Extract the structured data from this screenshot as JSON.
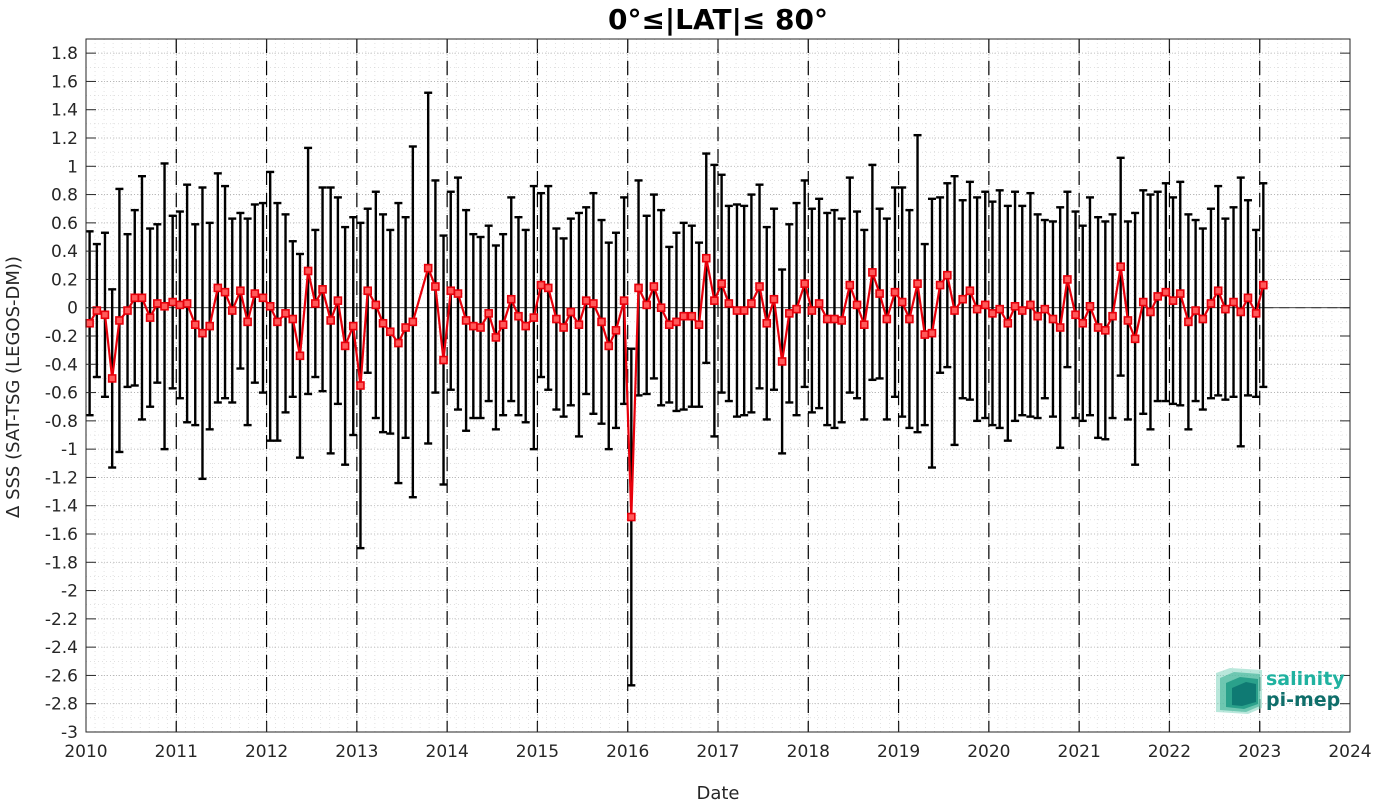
{
  "chart_data": {
    "type": "line",
    "title": "0°≤|LAT|≤ 80°",
    "xlabel": "Date",
    "ylabel": "Δ SSS (SAT-TSG (LEGOS-DM))",
    "xlim": [
      2010,
      2024
    ],
    "ylim": [
      -3,
      1.9
    ],
    "x_ticks": [
      "2010",
      "2011",
      "2012",
      "2013",
      "2014",
      "2015",
      "2016",
      "2017",
      "2018",
      "2019",
      "2020",
      "2021",
      "2022",
      "2023",
      "2024"
    ],
    "y_ticks": [
      "-3",
      "-2.8",
      "-2.6",
      "-2.4",
      "-2.2",
      "-2",
      "-1.8",
      "-1.6",
      "-1.4",
      "-1.2",
      "-1",
      "-0.8",
      "-0.6",
      "-0.4",
      "-0.2",
      "0",
      "0.2",
      "0.4",
      "0.6",
      "0.8",
      "1",
      "1.2",
      "1.4",
      "1.6",
      "1.8"
    ],
    "grid": true,
    "year_dividers": [
      2011,
      2012,
      2013,
      2014,
      2015,
      2016,
      2017,
      2018,
      2019,
      2020,
      2021,
      2022,
      2023
    ],
    "series": [
      {
        "color": "#e8000b",
        "errorbar_color": "#000000",
        "points": [
          [
            2010.04,
            -0.11,
            0.65
          ],
          [
            2010.12,
            -0.02,
            0.47
          ],
          [
            2010.21,
            -0.05,
            0.58
          ],
          [
            2010.29,
            -0.5,
            0.63
          ],
          [
            2010.37,
            -0.09,
            0.93
          ],
          [
            2010.46,
            -0.02,
            0.54
          ],
          [
            2010.54,
            0.07,
            0.62
          ],
          [
            2010.62,
            0.07,
            0.86
          ],
          [
            2010.71,
            -0.07,
            0.63
          ],
          [
            2010.79,
            0.03,
            0.56
          ],
          [
            2010.87,
            0.01,
            1.01
          ],
          [
            2010.96,
            0.04,
            0.61
          ],
          [
            2011.04,
            0.02,
            0.66
          ],
          [
            2011.12,
            0.03,
            0.84
          ],
          [
            2011.21,
            -0.12,
            0.71
          ],
          [
            2011.29,
            -0.18,
            1.03
          ],
          [
            2011.37,
            -0.13,
            0.73
          ],
          [
            2011.46,
            0.14,
            0.81
          ],
          [
            2011.54,
            0.11,
            0.75
          ],
          [
            2011.62,
            -0.02,
            0.65
          ],
          [
            2011.71,
            0.12,
            0.55
          ],
          [
            2011.79,
            -0.1,
            0.73
          ],
          [
            2011.87,
            0.1,
            0.63
          ],
          [
            2011.96,
            0.07,
            0.67
          ],
          [
            2012.04,
            0.01,
            0.95
          ],
          [
            2012.12,
            -0.1,
            0.84
          ],
          [
            2012.21,
            -0.04,
            0.7
          ],
          [
            2012.29,
            -0.08,
            0.55
          ],
          [
            2012.37,
            -0.34,
            0.72
          ],
          [
            2012.46,
            0.26,
            0.87
          ],
          [
            2012.54,
            0.03,
            0.52
          ],
          [
            2012.62,
            0.13,
            0.72
          ],
          [
            2012.71,
            -0.09,
            0.94
          ],
          [
            2012.79,
            0.05,
            0.73
          ],
          [
            2012.87,
            -0.27,
            0.84
          ],
          [
            2012.96,
            -0.13,
            0.77
          ],
          [
            2013.04,
            -0.55,
            1.15
          ],
          [
            2013.12,
            0.12,
            0.58
          ],
          [
            2013.21,
            0.02,
            0.8
          ],
          [
            2013.29,
            -0.11,
            0.77
          ],
          [
            2013.37,
            -0.17,
            0.72
          ],
          [
            2013.46,
            -0.25,
            0.99
          ],
          [
            2013.54,
            -0.14,
            0.78
          ],
          [
            2013.62,
            -0.1,
            1.24
          ],
          [
            2013.79,
            0.28,
            1.24
          ],
          [
            2013.87,
            0.15,
            0.75
          ],
          [
            2013.96,
            -0.37,
            0.88
          ],
          [
            2014.04,
            0.12,
            0.7
          ],
          [
            2014.12,
            0.1,
            0.82
          ],
          [
            2014.21,
            -0.09,
            0.78
          ],
          [
            2014.29,
            -0.13,
            0.65
          ],
          [
            2014.37,
            -0.14,
            0.64
          ],
          [
            2014.46,
            -0.04,
            0.62
          ],
          [
            2014.54,
            -0.21,
            0.65
          ],
          [
            2014.62,
            -0.12,
            0.64
          ],
          [
            2014.71,
            0.06,
            0.72
          ],
          [
            2014.79,
            -0.06,
            0.7
          ],
          [
            2014.87,
            -0.13,
            0.68
          ],
          [
            2014.96,
            -0.07,
            0.93
          ],
          [
            2015.04,
            0.16,
            0.65
          ],
          [
            2015.12,
            0.14,
            0.72
          ],
          [
            2015.21,
            -0.08,
            0.64
          ],
          [
            2015.29,
            -0.14,
            0.63
          ],
          [
            2015.37,
            -0.03,
            0.66
          ],
          [
            2015.46,
            -0.12,
            0.79
          ],
          [
            2015.54,
            0.05,
            0.66
          ],
          [
            2015.62,
            0.03,
            0.78
          ],
          [
            2015.71,
            -0.1,
            0.72
          ],
          [
            2015.79,
            -0.27,
            0.73
          ],
          [
            2015.87,
            -0.16,
            0.69
          ],
          [
            2015.96,
            0.05,
            0.73
          ],
          [
            2016.04,
            -1.48,
            1.19
          ],
          [
            2016.12,
            0.14,
            0.76
          ],
          [
            2016.21,
            0.02,
            0.63
          ],
          [
            2016.29,
            0.15,
            0.65
          ],
          [
            2016.37,
            0.0,
            0.69
          ],
          [
            2016.46,
            -0.12,
            0.55
          ],
          [
            2016.54,
            -0.1,
            0.63
          ],
          [
            2016.62,
            -0.06,
            0.66
          ],
          [
            2016.71,
            -0.06,
            0.64
          ],
          [
            2016.79,
            -0.12,
            0.58
          ],
          [
            2016.87,
            0.35,
            0.74
          ],
          [
            2016.96,
            0.05,
            0.96
          ],
          [
            2017.04,
            0.17,
            0.77
          ],
          [
            2017.12,
            0.03,
            0.69
          ],
          [
            2017.21,
            -0.02,
            0.75
          ],
          [
            2017.29,
            -0.02,
            0.74
          ],
          [
            2017.37,
            0.03,
            0.77
          ],
          [
            2017.46,
            0.15,
            0.72
          ],
          [
            2017.54,
            -0.11,
            0.68
          ],
          [
            2017.62,
            0.06,
            0.64
          ],
          [
            2017.71,
            -0.38,
            0.65
          ],
          [
            2017.79,
            -0.04,
            0.63
          ],
          [
            2017.87,
            -0.01,
            0.75
          ],
          [
            2017.96,
            0.17,
            0.73
          ],
          [
            2018.04,
            -0.02,
            0.72
          ],
          [
            2018.12,
            0.03,
            0.74
          ],
          [
            2018.21,
            -0.08,
            0.75
          ],
          [
            2018.29,
            -0.08,
            0.77
          ],
          [
            2018.37,
            -0.09,
            0.72
          ],
          [
            2018.46,
            0.16,
            0.76
          ],
          [
            2018.54,
            0.02,
            0.66
          ],
          [
            2018.62,
            -0.12,
            0.67
          ],
          [
            2018.71,
            0.25,
            0.76
          ],
          [
            2018.79,
            0.1,
            0.6
          ],
          [
            2018.87,
            -0.08,
            0.71
          ],
          [
            2018.96,
            0.11,
            0.74
          ],
          [
            2019.04,
            0.04,
            0.81
          ],
          [
            2019.12,
            -0.08,
            0.77
          ],
          [
            2019.21,
            0.17,
            1.05
          ],
          [
            2019.29,
            -0.19,
            0.64
          ],
          [
            2019.37,
            -0.18,
            0.95
          ],
          [
            2019.46,
            0.16,
            0.62
          ],
          [
            2019.54,
            0.23,
            0.65
          ],
          [
            2019.62,
            -0.02,
            0.95
          ],
          [
            2019.71,
            0.06,
            0.7
          ],
          [
            2019.79,
            0.12,
            0.77
          ],
          [
            2019.87,
            -0.01,
            0.79
          ],
          [
            2019.96,
            0.02,
            0.8
          ],
          [
            2020.04,
            -0.04,
            0.79
          ],
          [
            2020.12,
            -0.01,
            0.84
          ],
          [
            2020.21,
            -0.11,
            0.83
          ],
          [
            2020.29,
            0.01,
            0.81
          ],
          [
            2020.37,
            -0.02,
            0.74
          ],
          [
            2020.46,
            0.02,
            0.79
          ],
          [
            2020.54,
            -0.06,
            0.72
          ],
          [
            2020.62,
            -0.01,
            0.63
          ],
          [
            2020.71,
            -0.08,
            0.69
          ],
          [
            2020.79,
            -0.14,
            0.85
          ],
          [
            2020.87,
            0.2,
            0.62
          ],
          [
            2020.96,
            -0.05,
            0.73
          ],
          [
            2021.04,
            -0.11,
            0.69
          ],
          [
            2021.12,
            0.01,
            0.77
          ],
          [
            2021.21,
            -0.14,
            0.78
          ],
          [
            2021.29,
            -0.16,
            0.77
          ],
          [
            2021.37,
            -0.06,
            0.72
          ],
          [
            2021.46,
            0.29,
            0.77
          ],
          [
            2021.54,
            -0.09,
            0.7
          ],
          [
            2021.62,
            -0.22,
            0.89
          ],
          [
            2021.71,
            0.04,
            0.79
          ],
          [
            2021.79,
            -0.03,
            0.83
          ],
          [
            2021.87,
            0.08,
            0.74
          ],
          [
            2021.96,
            0.11,
            0.77
          ],
          [
            2022.04,
            0.05,
            0.73
          ],
          [
            2022.12,
            0.1,
            0.79
          ],
          [
            2022.21,
            -0.1,
            0.76
          ],
          [
            2022.29,
            -0.02,
            0.64
          ],
          [
            2022.37,
            -0.08,
            0.64
          ],
          [
            2022.46,
            0.03,
            0.67
          ],
          [
            2022.54,
            0.12,
            0.74
          ],
          [
            2022.62,
            -0.01,
            0.64
          ],
          [
            2022.71,
            0.04,
            0.67
          ],
          [
            2022.79,
            -0.03,
            0.95
          ],
          [
            2022.87,
            0.07,
            0.69
          ],
          [
            2022.96,
            -0.04,
            0.59
          ],
          [
            2023.04,
            0.16,
            0.72
          ]
        ]
      }
    ],
    "logo": {
      "line1": "salinity",
      "line2": "pi-mep"
    }
  }
}
